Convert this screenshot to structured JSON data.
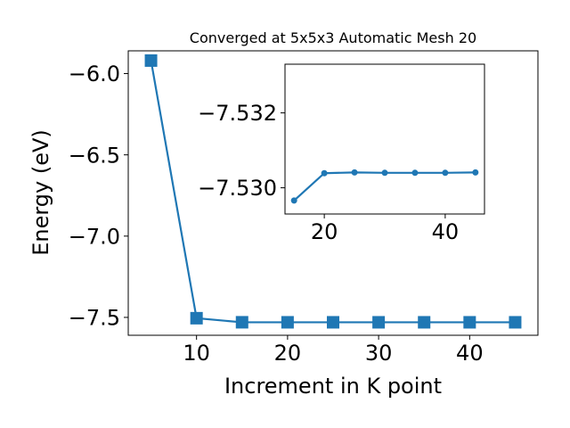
{
  "chart_data": [
    {
      "type": "line",
      "title": "Converged at 5x5x3 Automatic Mesh 20",
      "xlabel": "Increment in K point",
      "ylabel": "Energy (eV)",
      "xlim": [
        2.5,
        47.5
      ],
      "ylim": [
        -7.61,
        -5.86
      ],
      "xticks": [
        10,
        20,
        30,
        40
      ],
      "yticks": [
        -6.0,
        -6.5,
        -7.0,
        -7.5
      ],
      "xtick_labels": [
        "10",
        "20",
        "30",
        "40"
      ],
      "ytick_labels": [
        "−6.0",
        "−6.5",
        "−7.0",
        "−7.5"
      ],
      "grid": false,
      "marker": "square",
      "color": "#1f77b4",
      "series": [
        {
          "x": [
            5,
            10,
            15,
            20,
            25,
            30,
            35,
            40,
            45
          ],
          "y": [
            -5.92,
            -7.505,
            -7.53,
            -7.5302,
            -7.5302,
            -7.5302,
            -7.5302,
            -7.5302,
            -7.5302
          ]
        }
      ]
    },
    {
      "type": "line",
      "title": "",
      "xlabel": "",
      "ylabel": "",
      "xlim": [
        13.5,
        46.5
      ],
      "ylim": [
        -7.5293,
        -7.5333
      ],
      "xticks": [
        20,
        40
      ],
      "yticks": [
        -7.532,
        -7.53
      ],
      "xtick_labels": [
        "20",
        "40"
      ],
      "ytick_labels": [
        "−7.532",
        "−7.530"
      ],
      "grid": false,
      "marker": "circle",
      "color": "#1f77b4",
      "series": [
        {
          "x": [
            15,
            20,
            25,
            30,
            35,
            40,
            45
          ],
          "y": [
            -7.52966,
            -7.53039,
            -7.53041,
            -7.5304,
            -7.5304,
            -7.5304,
            -7.53041
          ]
        }
      ]
    }
  ]
}
